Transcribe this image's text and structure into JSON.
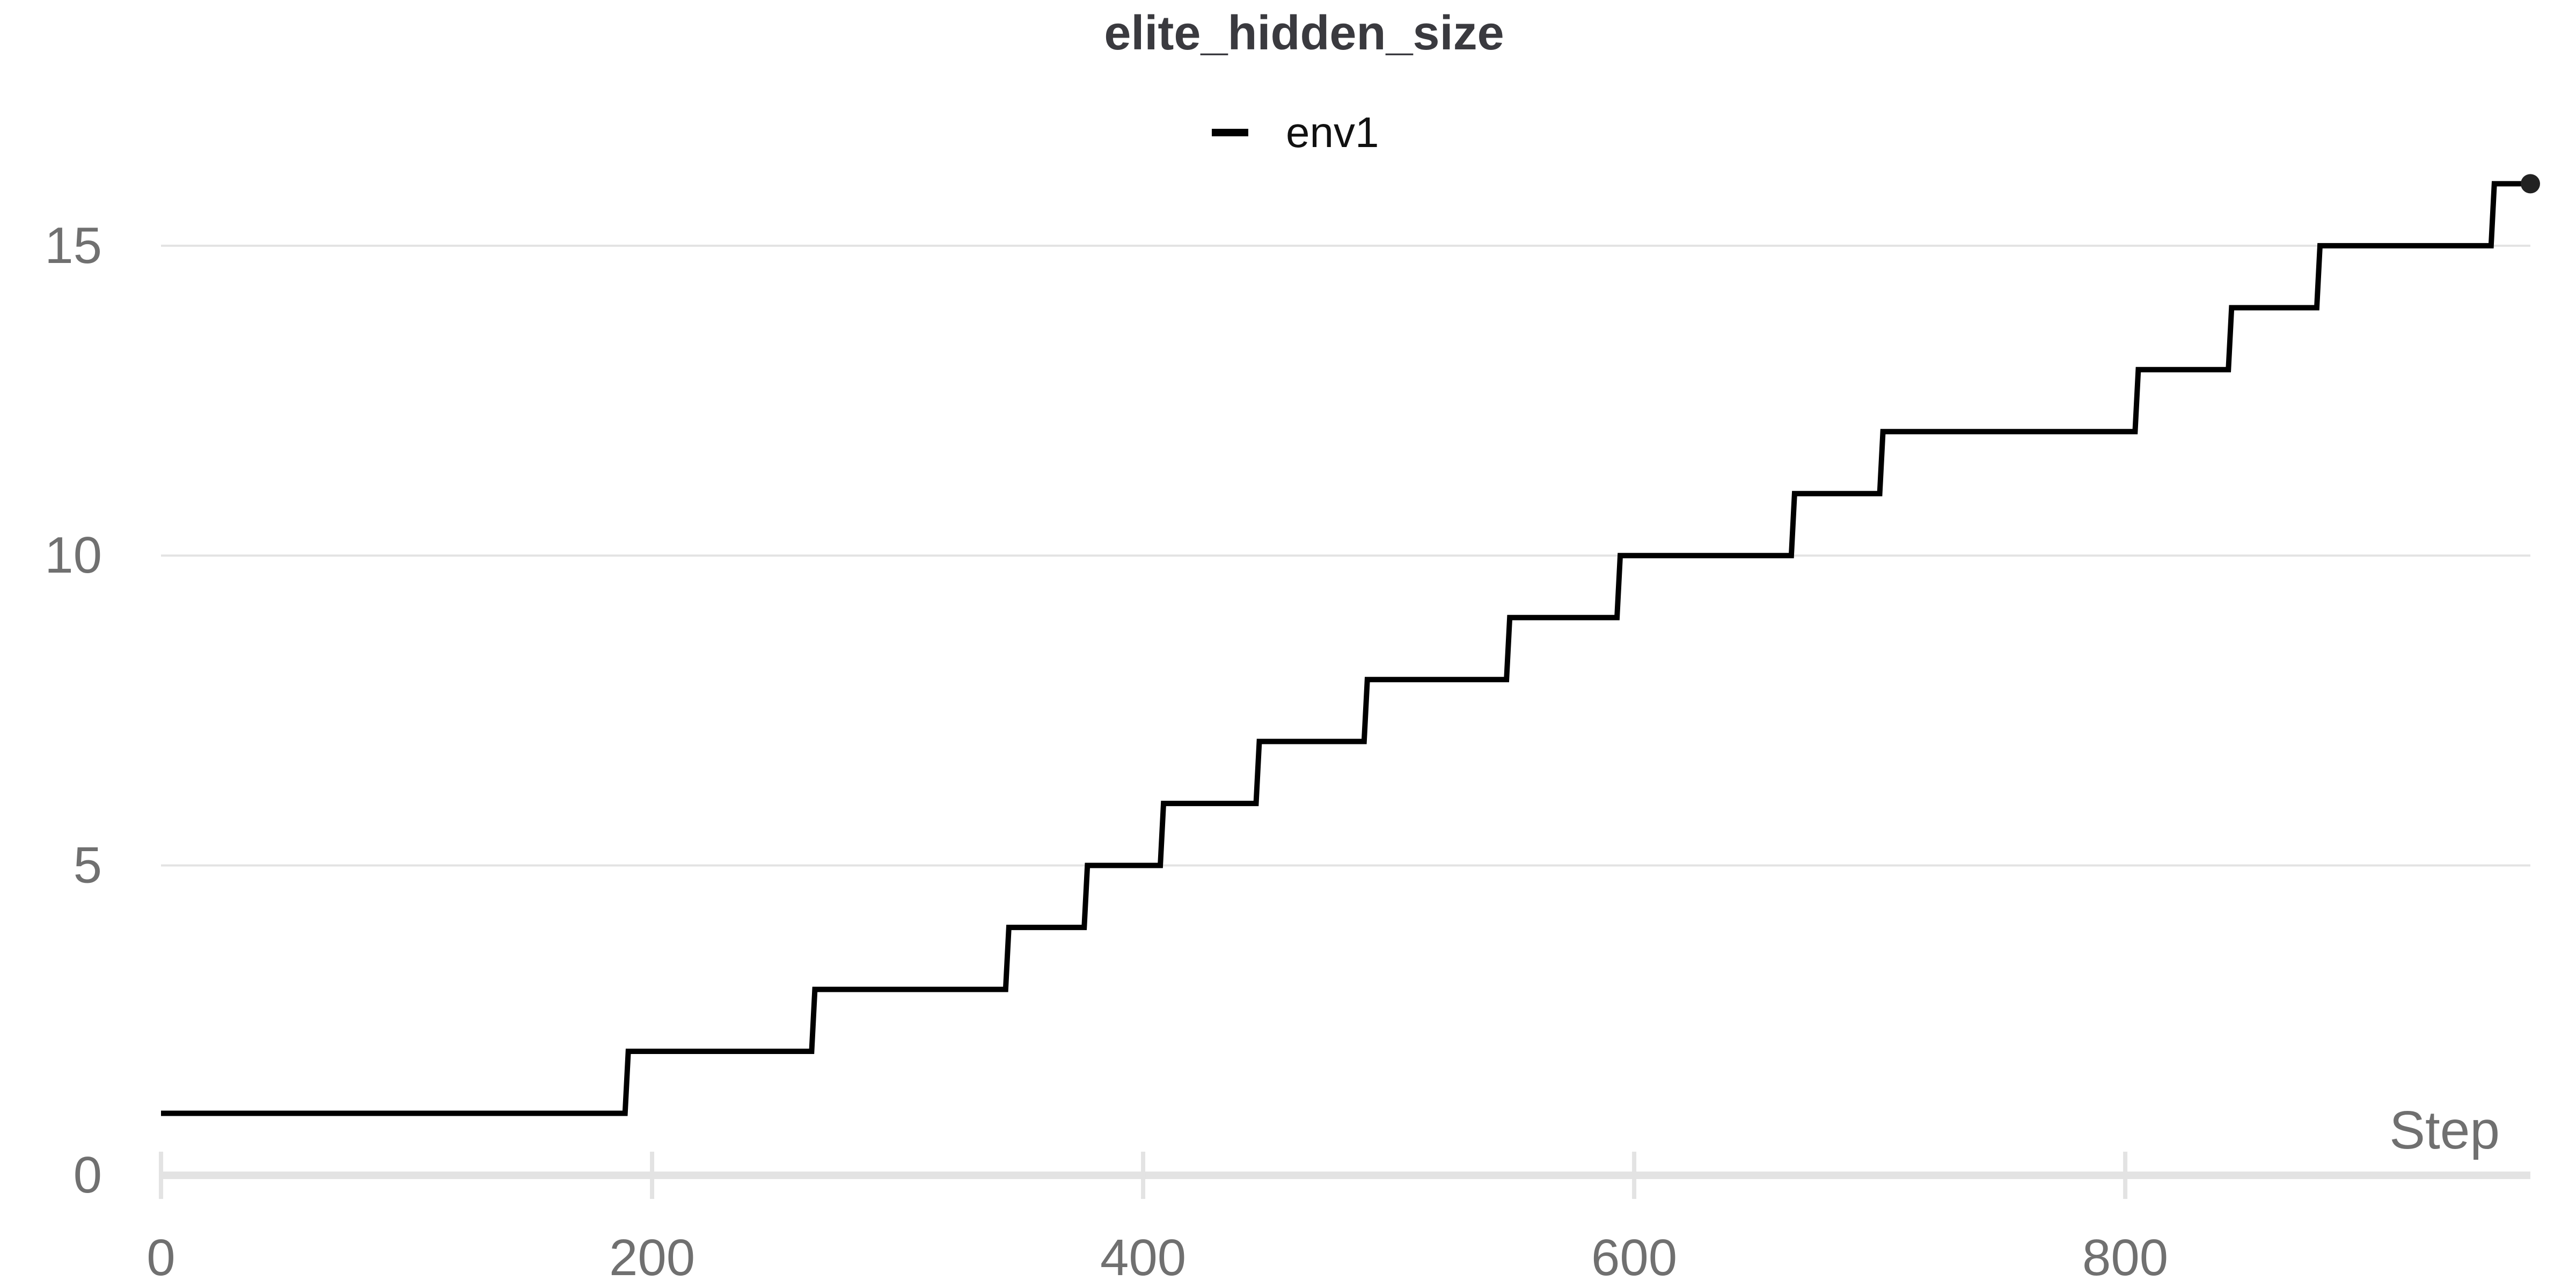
{
  "chart_data": {
    "type": "line",
    "title": "elite_hidden_size",
    "xlabel": "Step",
    "ylabel": "",
    "xlim": [
      0,
      965
    ],
    "ylim": [
      0,
      16.8
    ],
    "x_ticks": [
      0,
      200,
      400,
      600,
      800
    ],
    "y_ticks": [
      0,
      5,
      10,
      15
    ],
    "grid": "horizontal",
    "legend_placement": "top-center",
    "step_style": "steps-post",
    "series": [
      {
        "name": "env1",
        "color": "#000000",
        "x": [
          0,
          189,
          265,
          344,
          376,
          407,
          446,
          490,
          548,
          593,
          664,
          700,
          804,
          842,
          878,
          949,
          965
        ],
        "values": [
          1,
          2,
          3,
          4,
          5,
          6,
          7,
          8,
          9,
          10,
          11,
          12,
          13,
          14,
          15,
          16,
          16
        ]
      }
    ]
  }
}
